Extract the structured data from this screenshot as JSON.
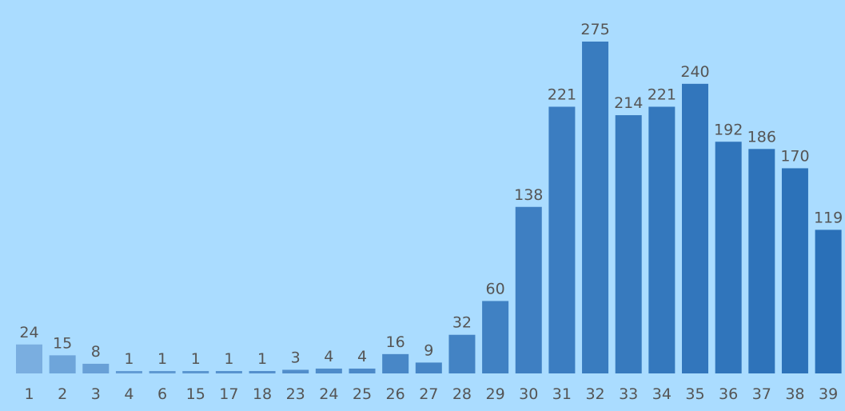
{
  "chart_data": {
    "type": "bar",
    "title": "",
    "xlabel": "",
    "ylabel": "",
    "categories": [
      "1",
      "2",
      "3",
      "4",
      "6",
      "15",
      "17",
      "18",
      "23",
      "24",
      "25",
      "26",
      "27",
      "28",
      "29",
      "30",
      "31",
      "32",
      "33",
      "34",
      "35",
      "36",
      "37",
      "38",
      "39"
    ],
    "values": [
      24,
      15,
      8,
      1,
      1,
      1,
      1,
      1,
      3,
      4,
      4,
      16,
      9,
      32,
      60,
      138,
      221,
      275,
      214,
      221,
      240,
      192,
      186,
      170,
      119
    ],
    "ylim": [
      0,
      275
    ],
    "grid": false,
    "legend": "none",
    "data_labels": true
  },
  "colors": {
    "background": "#aadcff",
    "bar_start": "#7aaee0",
    "bar_end": "#2a70b8",
    "text": "#555555"
  }
}
